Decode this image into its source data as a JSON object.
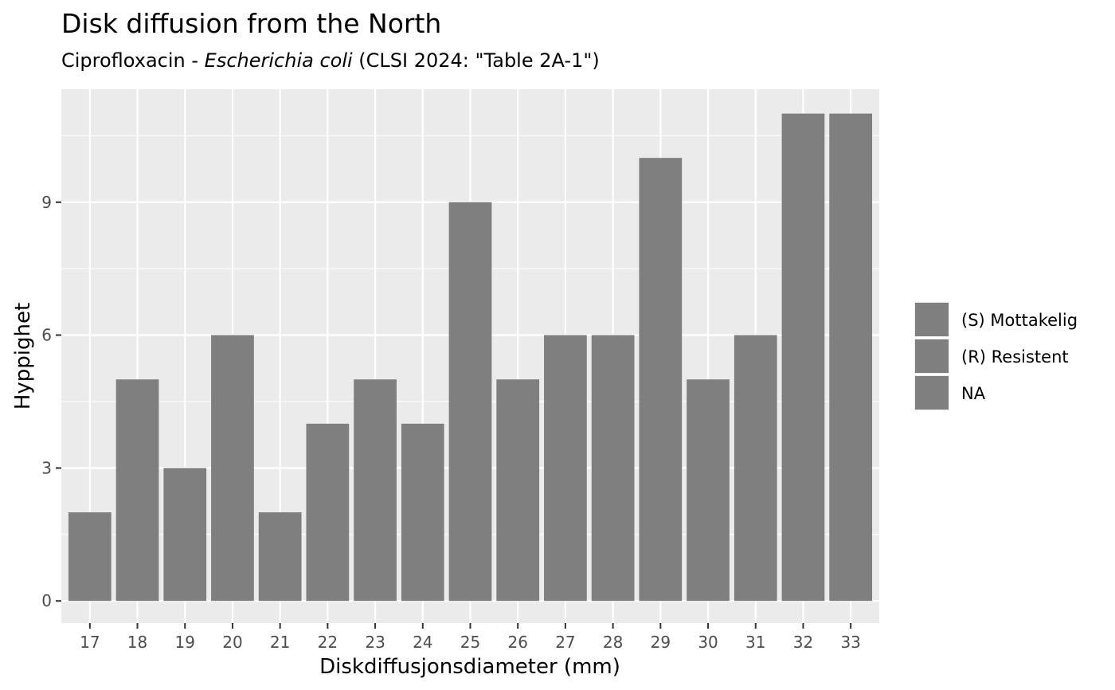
{
  "chart_data": {
    "type": "bar",
    "title": "Disk diffusion from the North",
    "subtitle": {
      "prefix": "Ciprofloxacin - ",
      "organism": "Escherichia coli",
      "suffix": " (CLSI 2024: \"Table 2A-1\")"
    },
    "xlabel": "Diskdiffusjonsdiameter (mm)",
    "ylabel": "Hyppighet",
    "categories": [
      "17",
      "18",
      "19",
      "20",
      "21",
      "22",
      "23",
      "24",
      "25",
      "26",
      "27",
      "28",
      "29",
      "30",
      "31",
      "32",
      "33"
    ],
    "values": [
      2,
      5,
      3,
      6,
      2,
      4,
      5,
      4,
      9,
      5,
      6,
      6,
      10,
      5,
      6,
      11,
      11
    ],
    "ylim": [
      -0.5,
      11.55
    ],
    "yticks": [
      0,
      3,
      6,
      9
    ],
    "grid": true,
    "legend_position": "right",
    "legend": {
      "entries": [
        "(S) Mottakelig",
        "(R) Resistent",
        "NA"
      ]
    },
    "colors": {
      "bar": "#7f7f7f",
      "panel": "#ebebeb",
      "grid": "#ffffff",
      "tick_text": "#4d4d4d"
    }
  }
}
